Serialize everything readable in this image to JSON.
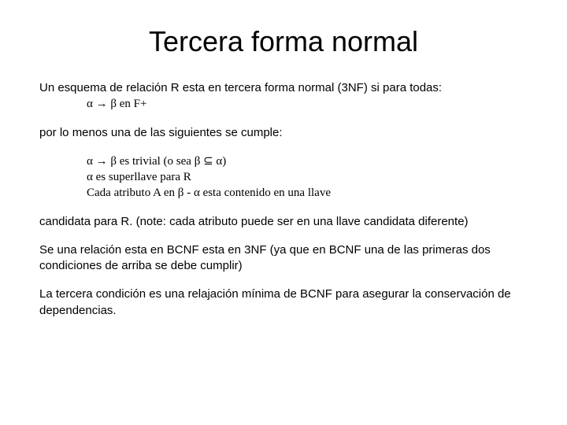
{
  "title": "Tercera forma normal",
  "intro_line1": "Un esquema de relación R esta en tercera forma normal (3NF) si para todas:",
  "intro_indent": "α → β  en F+",
  "line_atleast": "por lo menos una de las siguientes se cumple:",
  "cond1": "α → β es trivial (o sea β ⊆ α)",
  "cond2": "α es superllave para R",
  "cond3": "Cada atributo A en β - α esta contenido en una llave",
  "note": "candidata para R. (note: cada atributo puede ser en una llave candidata diferente)",
  "bcnf": "Se una relación esta en BCNF esta en 3NF (ya que en BCNF una de las primeras dos condiciones de arriba se debe cumplir)",
  "third": "La tercera condición es una relajación mínima de BCNF para asegurar la conservación de dependencias.",
  "colors": {
    "background": "#ffffff",
    "text": "#000000"
  },
  "typography": {
    "title_fontsize": 36,
    "body_fontsize": 15,
    "font_family": "Arial"
  }
}
